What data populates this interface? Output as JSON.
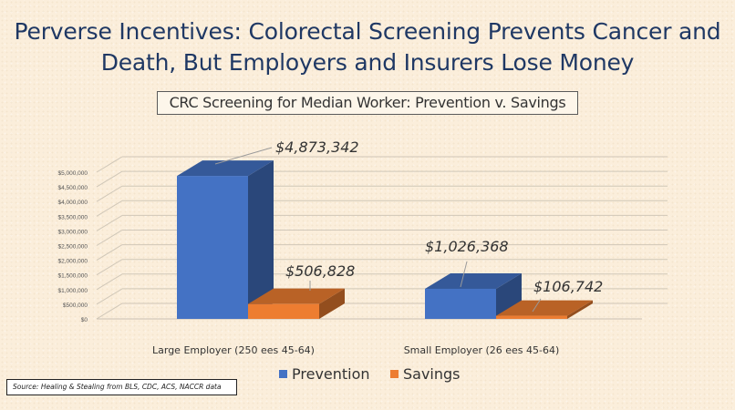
{
  "slide": {
    "title_line1": "Perverse Incentives: Colorectal Screening Prevents Cancer and",
    "title_line2": "Death, But Employers and Insurers Lose Money",
    "source_note": "Source: Healing & Stealing from BLS, CDC, ACS, NACCR data"
  },
  "chart_data": {
    "type": "bar",
    "title": "CRC Screening for Median Worker: Prevention v. Savings",
    "categories": [
      "Large Employer (250 ees 45-64)",
      "Small Employer (26 ees 45-64)"
    ],
    "series": [
      {
        "name": "Prevention",
        "color": "#4472c4",
        "values": [
          4873342,
          1026368
        ],
        "labels": [
          "$4,873,342",
          "$1,026,368"
        ]
      },
      {
        "name": "Savings",
        "color": "#ed7d31",
        "values": [
          506828,
          106742
        ],
        "labels": [
          "$506,828",
          "$106,742"
        ]
      }
    ],
    "y_ticks": [
      "$0",
      "$500,000",
      "$1,000,000",
      "$1,500,000",
      "$2,000,000",
      "$2,500,000",
      "$3,000,000",
      "$3,500,000",
      "$4,000,000",
      "$4,500,000",
      "$5,000,000"
    ],
    "ylim": [
      0,
      5000000
    ],
    "grid": true,
    "legend_position": "bottom",
    "three_d": true
  }
}
